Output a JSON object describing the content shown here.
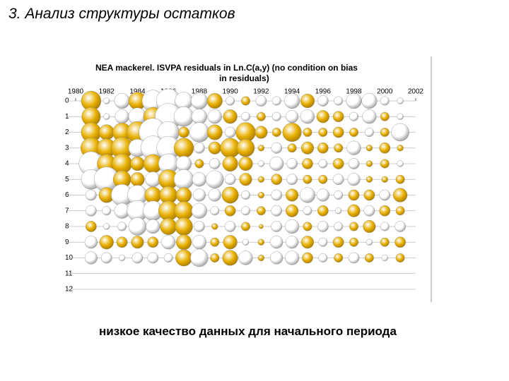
{
  "title": "3. Анализ структуры остатков",
  "caption": "низкое качество данных для начального периода",
  "chart_data": {
    "type": "bubble",
    "title": [
      "NEA mackerel. ISVPA residuals in  Ln.C(a,y) (no condition on bias",
      "in residuals)"
    ],
    "x": [
      1981,
      1982,
      1983,
      1984,
      1985,
      1986,
      1987,
      1988,
      1989,
      1990,
      1991,
      1992,
      1993,
      1994,
      1995,
      1996,
      1997,
      1998,
      1999,
      2000,
      2001
    ],
    "ages": [
      0,
      1,
      2,
      3,
      4,
      5,
      6,
      7,
      8,
      9,
      10
    ],
    "residuals": [
      [
        1.0,
        -0.1,
        -0.6,
        0.8,
        -1.2,
        -1.5,
        -0.8,
        -0.7,
        0.6,
        -0.2,
        0.2,
        -0.3,
        -0.2,
        -0.6,
        0.5,
        -0.3,
        -0.2,
        -0.6,
        -0.6,
        -0.2,
        -0.1
      ],
      [
        0.9,
        -0.1,
        -0.5,
        -0.8,
        0.9,
        -1.8,
        -1.0,
        -0.6,
        -0.5,
        0.5,
        -0.2,
        0.2,
        -0.2,
        -0.4,
        -0.5,
        0.4,
        0.3,
        -0.2,
        -0.5,
        0.2,
        -0.1
      ],
      [
        1.0,
        0.6,
        0.9,
        1.2,
        -2.0,
        -1.2,
        0.3,
        -1.0,
        0.6,
        -0.3,
        1.0,
        0.4,
        0.2,
        0.9,
        0.2,
        0.2,
        0.3,
        0.2,
        -0.2,
        0.2,
        -0.8
      ],
      [
        1.1,
        0.9,
        1.2,
        -0.8,
        -1.5,
        -1.4,
        1.0,
        -0.3,
        0.4,
        1.0,
        0.8,
        0.1,
        -0.3,
        0.2,
        0.4,
        0.3,
        0.2,
        -0.5,
        0.1,
        0.3,
        0.1
      ],
      [
        -1.5,
        0.9,
        1.0,
        0.5,
        0.9,
        -1.0,
        -0.6,
        0.2,
        -0.3,
        0.6,
        0.5,
        -0.1,
        -0.5,
        -0.3,
        0.3,
        -0.2,
        0.3,
        -0.3,
        0.1,
        0.2,
        -0.1
      ],
      [
        -1.0,
        -1.6,
        0.8,
        0.5,
        -0.6,
        1.0,
        -1.0,
        -0.5,
        -0.8,
        -0.3,
        0.4,
        0.1,
        0.3,
        -0.3,
        0.2,
        0.2,
        -0.3,
        -0.4,
        0.1,
        0.1,
        0.2
      ],
      [
        -0.3,
        0.6,
        -1.2,
        -1.0,
        0.7,
        0.8,
        0.6,
        -0.4,
        -0.4,
        0.7,
        -0.2,
        0.1,
        -0.3,
        0.4,
        -0.6,
        -0.4,
        -0.2,
        0.3,
        0.3,
        -0.3,
        0.5
      ],
      [
        -0.3,
        -0.2,
        -0.6,
        -1.1,
        -1.0,
        1.0,
        0.9,
        -0.6,
        -0.2,
        0.3,
        -0.2,
        0.2,
        -0.3,
        0.4,
        -0.2,
        0.3,
        -0.1,
        0.4,
        -0.3,
        0.3,
        0.2
      ],
      [
        0.3,
        -0.1,
        -0.2,
        -0.8,
        -0.5,
        0.7,
        0.8,
        -0.3,
        0.1,
        -0.3,
        0.2,
        0.05,
        -0.3,
        -0.5,
        0.2,
        -0.3,
        -0.2,
        0.2,
        0.4,
        -0.2,
        -0.3
      ],
      [
        -0.4,
        0.5,
        0.3,
        0.4,
        0.3,
        -0.5,
        0.6,
        -0.5,
        0.2,
        0.5,
        -0.1,
        0.1,
        -0.4,
        -0.4,
        0.4,
        -0.2,
        0.3,
        0.2,
        -0.1,
        0.2,
        0.3
      ],
      [
        -0.4,
        -0.3,
        -0.1,
        -0.3,
        -0.3,
        -0.2,
        0.7,
        -0.8,
        0.2,
        0.6,
        -0.5,
        0.1,
        -0.4,
        -0.5,
        0.3,
        -0.2,
        0.2,
        -0.3,
        0.2,
        -0.1,
        0.2
      ]
    ],
    "positive_color": "#e8b000",
    "negative_color": "#ffffff",
    "xlim": [
      1980,
      2002
    ],
    "xticks": [
      1980,
      1982,
      1984,
      1986,
      1988,
      1990,
      1992,
      1994,
      1996,
      1998,
      2000,
      2002
    ],
    "ylim": [
      0,
      12
    ],
    "yticks": [
      0,
      1,
      2,
      3,
      4,
      5,
      6,
      7,
      8,
      9,
      10,
      11,
      12
    ],
    "y_reversed": true,
    "grid": true
  }
}
